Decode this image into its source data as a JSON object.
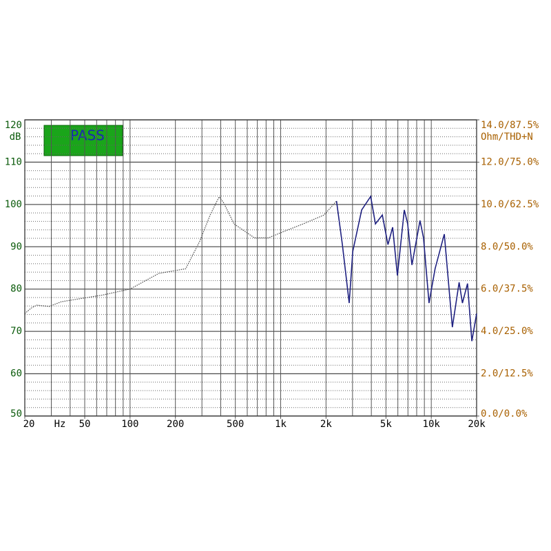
{
  "chart_data": {
    "type": "line",
    "status": "PASS",
    "xlabel": "Hz",
    "ylabel": "dB",
    "y2label": "Ohm/THD+N",
    "xscale": "log",
    "xlim": [
      20,
      20000
    ],
    "xticks": [
      20,
      50,
      100,
      200,
      500,
      {
        "value": 1000,
        "label": "1k"
      },
      {
        "value": 2000,
        "label": "2k"
      },
      {
        "value": 5000,
        "label": "5k"
      },
      {
        "value": 10000,
        "label": "10k"
      },
      {
        "value": 20000,
        "label": "20k"
      }
    ],
    "xgrid": [
      20,
      30,
      40,
      50,
      60,
      70,
      80,
      90,
      100,
      200,
      300,
      400,
      500,
      600,
      700,
      800,
      900,
      1000,
      2000,
      3000,
      4000,
      5000,
      6000,
      7000,
      8000,
      9000,
      10000,
      20000
    ],
    "ylim": [
      50,
      120
    ],
    "yticks": [
      50,
      60,
      70,
      80,
      90,
      100,
      110,
      120
    ],
    "ygrid_minor": [
      52,
      54,
      56,
      58,
      62,
      64,
      66,
      68,
      72,
      74,
      76,
      78,
      82,
      84,
      86,
      88,
      92,
      94,
      96,
      98,
      102,
      104,
      106,
      108,
      112,
      114,
      116,
      118
    ],
    "y2lim": [
      0,
      14
    ],
    "y2ticks": [
      {
        "value": 0,
        "label": "0.0/0.0%"
      },
      {
        "value": 2,
        "label": "2.0/12.5%"
      },
      {
        "value": 4,
        "label": "4.0/25.0%"
      },
      {
        "value": 6,
        "label": "6.0/37.5%"
      },
      {
        "value": 8,
        "label": "8.0/50.0%"
      },
      {
        "value": 10,
        "label": "10.0/62.5%"
      },
      {
        "value": 12,
        "label": "12.0/75.0%"
      },
      {
        "value": 14,
        "label": "14.0/87.5%"
      }
    ],
    "grid": true,
    "series": [
      {
        "color": "#444444",
        "dashed": true,
        "x": [
          20,
          22,
          24,
          29,
          35,
          48,
          66,
          100,
          155,
          234,
          290,
          340,
          390,
          420,
          490,
          670,
          830,
          1030,
          1410,
          1940,
          2350
        ],
        "values": [
          74.2,
          75.5,
          76.2,
          75.9,
          77,
          77.8,
          78.6,
          80,
          83.7,
          84.8,
          91.3,
          97.5,
          101.8,
          100.3,
          95.4,
          92.1,
          92.1,
          93.5,
          95.4,
          97.5,
          100.8
        ]
      },
      {
        "color": "#1e2080",
        "dashed": false,
        "x": [
          2350,
          2570,
          2850,
          3010,
          3450,
          3960,
          4260,
          4730,
          5160,
          5540,
          5960,
          6620,
          6970,
          7440,
          8420,
          8880,
          9660,
          10600,
          12200,
          13800,
          15300,
          16100,
          17400,
          18600,
          20000
        ],
        "values": [
          100.8,
          90.5,
          76.7,
          88.9,
          98.7,
          101.9,
          95.4,
          97.5,
          90.5,
          94.6,
          83.2,
          98.7,
          95.4,
          85.7,
          96.2,
          92.1,
          76.7,
          84.8,
          93,
          71,
          81.6,
          76.7,
          81.3,
          67.7,
          74.2
        ]
      }
    ]
  }
}
